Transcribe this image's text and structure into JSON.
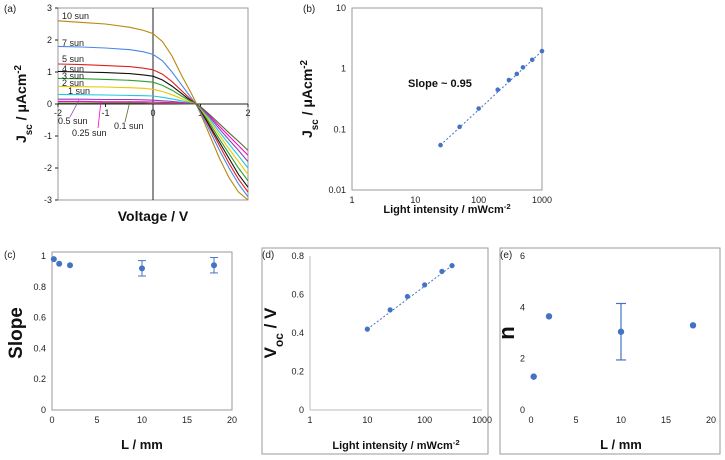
{
  "chart_data": [
    {
      "panel": "(a)",
      "type": "line",
      "xlabel": "Voltage / V",
      "ylabel": "Jsc / μAcm-2",
      "xlim": [
        -2,
        2
      ],
      "ylim": [
        -3,
        3
      ],
      "xticks": [
        "-2",
        "-1",
        "0",
        "1",
        "2"
      ],
      "yticks": [
        "-3",
        "-2",
        "-1",
        "0",
        "1",
        "2",
        "3"
      ],
      "series": [
        {
          "name": "10 sun",
          "color": "#b8860b",
          "x": [
            -2,
            -1.5,
            -1,
            -0.5,
            -0.2,
            0,
            0.2,
            0.4,
            0.6,
            0.8,
            0.9,
            1.0,
            1.2,
            1.4,
            1.6,
            1.8,
            2.0
          ],
          "y": [
            2.6,
            2.55,
            2.5,
            2.4,
            2.3,
            2.2,
            1.95,
            1.5,
            0.9,
            0.35,
            0.05,
            -0.3,
            -1.0,
            -1.7,
            -2.3,
            -2.75,
            -3.0
          ]
        },
        {
          "name": "7 sun",
          "color": "#4a86e8",
          "x": [
            -2,
            -1.5,
            -1,
            -0.5,
            -0.2,
            0,
            0.2,
            0.4,
            0.6,
            0.8,
            0.9,
            1.0,
            1.2,
            1.4,
            1.6,
            1.8,
            2.0
          ],
          "y": [
            1.8,
            1.78,
            1.75,
            1.7,
            1.63,
            1.55,
            1.35,
            1.0,
            0.6,
            0.2,
            0.0,
            -0.25,
            -0.85,
            -1.45,
            -2.0,
            -2.5,
            -2.9
          ]
        },
        {
          "name": "5 sun",
          "color": "#e02020",
          "x": [
            -2,
            -1.5,
            -1,
            -0.5,
            -0.2,
            0,
            0.2,
            0.4,
            0.6,
            0.8,
            0.9,
            1.0,
            1.2,
            1.4,
            1.6,
            1.8,
            2.0
          ],
          "y": [
            1.25,
            1.23,
            1.2,
            1.17,
            1.12,
            1.07,
            0.93,
            0.7,
            0.42,
            0.14,
            0.0,
            -0.2,
            -0.75,
            -1.3,
            -1.85,
            -2.35,
            -2.75
          ]
        },
        {
          "name": "4 sun",
          "color": "#111111",
          "x": [
            -2,
            -1.5,
            -1,
            -0.5,
            -0.2,
            0,
            0.2,
            0.4,
            0.6,
            0.8,
            0.9,
            1.0,
            1.2,
            1.4,
            1.6,
            1.8,
            2.0
          ],
          "y": [
            1.02,
            1.0,
            0.98,
            0.95,
            0.91,
            0.87,
            0.75,
            0.56,
            0.33,
            0.1,
            0.0,
            -0.18,
            -0.7,
            -1.2,
            -1.7,
            -2.2,
            -2.6
          ]
        },
        {
          "name": "3 sun",
          "color": "#2ca02c",
          "x": [
            -2,
            -1.5,
            -1,
            -0.5,
            -0.2,
            0,
            0.2,
            0.4,
            0.6,
            0.8,
            0.9,
            1.0,
            1.2,
            1.4,
            1.6,
            1.8,
            2.0
          ],
          "y": [
            0.8,
            0.79,
            0.77,
            0.74,
            0.71,
            0.68,
            0.58,
            0.43,
            0.25,
            0.08,
            0.0,
            -0.16,
            -0.62,
            -1.1,
            -1.55,
            -2.0,
            -2.4
          ]
        },
        {
          "name": "2 sun",
          "color": "#e8c800",
          "x": [
            -2,
            -1.5,
            -1,
            -0.5,
            -0.2,
            0,
            0.2,
            0.4,
            0.6,
            0.8,
            0.9,
            1.0,
            1.2,
            1.4,
            1.6,
            1.8,
            2.0
          ],
          "y": [
            0.55,
            0.54,
            0.53,
            0.51,
            0.49,
            0.46,
            0.39,
            0.29,
            0.17,
            0.05,
            0.0,
            -0.14,
            -0.55,
            -0.98,
            -1.4,
            -1.8,
            -2.2
          ]
        },
        {
          "name": "1 sun",
          "color": "#20c8e0",
          "x": [
            -2,
            -1.5,
            -1,
            -0.5,
            -0.2,
            0,
            0.2,
            0.4,
            0.6,
            0.8,
            0.9,
            1.0,
            1.2,
            1.4,
            1.6,
            1.8,
            2.0
          ],
          "y": [
            0.3,
            0.29,
            0.28,
            0.27,
            0.26,
            0.25,
            0.21,
            0.16,
            0.1,
            0.03,
            0.0,
            -0.12,
            -0.48,
            -0.88,
            -1.25,
            -1.62,
            -2.0
          ]
        },
        {
          "name": "0.5 sun",
          "color": "#8e44ad",
          "x": [
            -2,
            -1.5,
            -1,
            -0.5,
            -0.2,
            0,
            0.2,
            0.4,
            0.6,
            0.8,
            0.9,
            1.0,
            1.2,
            1.4,
            1.6,
            1.8,
            2.0
          ],
          "y": [
            0.15,
            0.15,
            0.14,
            0.14,
            0.13,
            0.12,
            0.1,
            0.08,
            0.05,
            0.02,
            0.0,
            -0.1,
            -0.42,
            -0.78,
            -1.12,
            -1.45,
            -1.8
          ]
        },
        {
          "name": "0.25 sun",
          "color": "#ff00cc",
          "x": [
            -2,
            -1.5,
            -1,
            -0.5,
            -0.2,
            0,
            0.2,
            0.4,
            0.6,
            0.8,
            0.9,
            1.0,
            1.2,
            1.4,
            1.6,
            1.8,
            2.0
          ],
          "y": [
            0.08,
            0.08,
            0.07,
            0.07,
            0.07,
            0.06,
            0.05,
            0.04,
            0.03,
            0.01,
            0.0,
            -0.09,
            -0.38,
            -0.7,
            -1.0,
            -1.3,
            -1.6
          ]
        },
        {
          "name": "0.1 sun",
          "color": "#556b2f",
          "x": [
            -2,
            -1.5,
            -1,
            -0.5,
            -0.2,
            0,
            0.2,
            0.4,
            0.6,
            0.8,
            0.9,
            1.0,
            1.2,
            1.4,
            1.6,
            1.8,
            2.0
          ],
          "y": [
            0.03,
            0.03,
            0.03,
            0.03,
            0.03,
            0.02,
            0.02,
            0.02,
            0.01,
            0.0,
            0.0,
            -0.08,
            -0.34,
            -0.62,
            -0.9,
            -1.17,
            -1.45
          ]
        }
      ]
    },
    {
      "panel": "(b)",
      "type": "scatter",
      "xlabel": "Light intensity / mWcm-2",
      "ylabel": "Jsc / μAcm-2",
      "xscale": "log",
      "yscale": "log",
      "xlim": [
        1,
        1000
      ],
      "ylim": [
        0.01,
        10
      ],
      "xticks": [
        "1",
        "10",
        "100",
        "1000"
      ],
      "yticks": [
        "0.01",
        "0.1",
        "1",
        "10"
      ],
      "annotation": "Slope ~ 0.95",
      "annotation_color": "#e02020",
      "point_color": "#4472c4",
      "x": [
        25,
        50,
        100,
        200,
        300,
        400,
        500,
        700,
        1000
      ],
      "y": [
        0.055,
        0.11,
        0.22,
        0.45,
        0.65,
        0.82,
        1.05,
        1.4,
        1.95
      ]
    },
    {
      "panel": "(c)",
      "type": "scatter",
      "xlabel": "L / mm",
      "ylabel": "Slope",
      "xlim": [
        0,
        20
      ],
      "ylim": [
        0,
        1
      ],
      "xticks": [
        "0",
        "5",
        "10",
        "15",
        "20"
      ],
      "yticks": [
        "0",
        "0.2",
        "0.4",
        "0.6",
        "0.8",
        "1"
      ],
      "point_color": "#4472c4",
      "x": [
        0.2,
        0.8,
        2,
        10,
        18
      ],
      "y": [
        0.98,
        0.95,
        0.94,
        0.92,
        0.94
      ],
      "error": [
        0,
        0,
        0,
        0.05,
        0.05
      ]
    },
    {
      "panel": "(d)",
      "type": "scatter",
      "xlabel": "Light intensity / mWcm-2",
      "ylabel": "Voc / V",
      "xscale": "log",
      "xlim": [
        1,
        1000
      ],
      "ylim": [
        0,
        0.8
      ],
      "xticks": [
        "1",
        "10",
        "100",
        "1000"
      ],
      "yticks": [
        "0",
        "0.2",
        "0.4",
        "0.6",
        "0.8"
      ],
      "point_color": "#4472c4",
      "x": [
        10,
        25,
        50,
        100,
        200,
        300
      ],
      "y": [
        0.42,
        0.52,
        0.59,
        0.65,
        0.72,
        0.75
      ]
    },
    {
      "panel": "(e)",
      "type": "scatter",
      "xlabel": "L / mm",
      "ylabel": "n",
      "xlim": [
        0,
        20
      ],
      "ylim": [
        0,
        6
      ],
      "xticks": [
        "0",
        "5",
        "10",
        "15",
        "20"
      ],
      "yticks": [
        "0",
        "2",
        "4",
        "6"
      ],
      "point_color": "#4472c4",
      "x": [
        0.3,
        2,
        10,
        18
      ],
      "y": [
        1.3,
        3.65,
        3.05,
        3.3
      ],
      "error": [
        0,
        0,
        1.1,
        0
      ]
    }
  ]
}
